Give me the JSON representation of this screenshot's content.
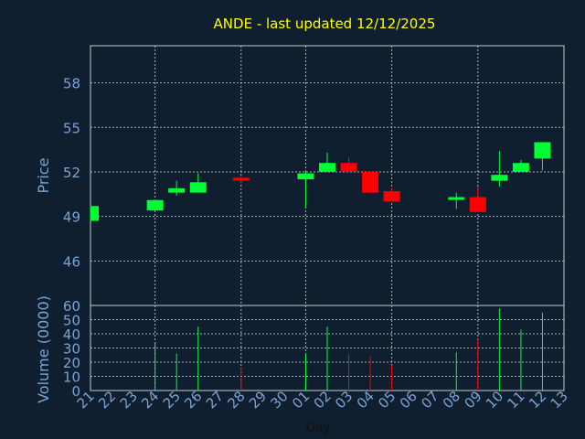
{
  "chart_data": {
    "type": "candlestick",
    "title": "ANDE - last updated 12/12/2025",
    "xlabel": "Day",
    "price_ylabel": "Price",
    "volume_ylabel": "Volume (0000)",
    "price_ylim": [
      43,
      60.5
    ],
    "price_ticks": [
      "46",
      "49",
      "52",
      "55",
      "58"
    ],
    "volume_ylim": [
      0,
      60
    ],
    "volume_ticks": [
      "0",
      "10",
      "20",
      "30",
      "40",
      "50",
      "60"
    ],
    "x_tick_labels": [
      "21",
      "22",
      "23",
      "24",
      "25",
      "26",
      "27",
      "28",
      "29",
      "30",
      "01",
      "02",
      "03",
      "04",
      "05",
      "06",
      "07",
      "08",
      "09",
      "10",
      "11",
      "12",
      "13"
    ],
    "grid": true,
    "colors": {
      "background": "#0f1f30",
      "up": "#00ff33",
      "down": "#ff0000",
      "grid": "#c8c8c8",
      "title": "#ffff00",
      "axis_text": "#7aa3d6"
    },
    "candles": [
      {
        "x": "21",
        "open": 48.7,
        "high": 49.7,
        "low": 48.7,
        "close": 49.7,
        "volume": 0
      },
      {
        "x": "24",
        "open": 49.4,
        "high": 50.1,
        "low": 49.4,
        "close": 50.1,
        "volume": 34
      },
      {
        "x": "25",
        "open": 50.6,
        "high": 51.4,
        "low": 50.4,
        "close": 50.9,
        "volume": 26
      },
      {
        "x": "26",
        "open": 50.6,
        "high": 51.9,
        "low": 50.6,
        "close": 51.3,
        "volume": 45
      },
      {
        "x": "28",
        "open": 51.6,
        "high": 51.7,
        "low": 51.2,
        "close": 51.5,
        "volume": 16
      },
      {
        "x": "01",
        "open": 51.5,
        "high": 52.0,
        "low": 49.6,
        "close": 51.9,
        "volume": 26
      },
      {
        "x": "02",
        "open": 52.0,
        "high": 53.3,
        "low": 52.0,
        "close": 52.6,
        "volume": 45
      },
      {
        "x": "03",
        "open": 52.6,
        "high": 53.0,
        "low": 52.0,
        "close": 52.0,
        "volume": 26
      },
      {
        "x": "04",
        "open": 52.0,
        "high": 52.0,
        "low": 50.6,
        "close": 50.6,
        "volume": 24
      },
      {
        "x": "05",
        "open": 50.7,
        "high": 50.9,
        "low": 50.0,
        "close": 50.0,
        "volume": 18
      },
      {
        "x": "08",
        "open": 50.2,
        "high": 50.6,
        "low": 49.5,
        "close": 50.3,
        "volume": 27
      },
      {
        "x": "09",
        "open": 50.3,
        "high": 51.0,
        "low": 49.3,
        "close": 49.3,
        "volume": 36
      },
      {
        "x": "10",
        "open": 51.4,
        "high": 53.4,
        "low": 51.0,
        "close": 51.8,
        "volume": 58
      },
      {
        "x": "11",
        "open": 52.0,
        "high": 52.8,
        "low": 52.0,
        "close": 52.6,
        "volume": 43
      },
      {
        "x": "12",
        "open": 52.9,
        "high": 54.0,
        "low": 52.1,
        "close": 54.0,
        "volume": 55
      }
    ]
  }
}
